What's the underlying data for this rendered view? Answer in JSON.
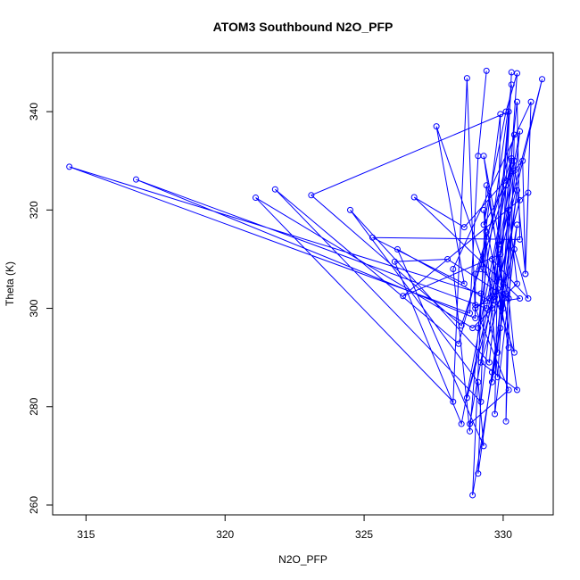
{
  "chart_data": {
    "type": "line",
    "title": "ATOM3 Southbound N2O_PFP",
    "xlabel": "N2O_PFP",
    "ylabel": "Theta (K)",
    "xlim": [
      313.8,
      331.8
    ],
    "ylim": [
      258,
      352
    ],
    "x_ticks": [
      315,
      320,
      325,
      330
    ],
    "y_ticks": [
      260,
      280,
      300,
      320,
      340
    ],
    "markers": "open-circle",
    "grid": false,
    "color": "#0000ff",
    "series": [
      {
        "points": [
          [
            329.4,
            348.3
          ],
          [
            329.1,
            331.0
          ],
          [
            328.8,
            299.0
          ],
          [
            314.4,
            328.8
          ],
          [
            329.2,
            303.0
          ],
          [
            329.8,
            291.0
          ],
          [
            330.3,
            348.0
          ],
          [
            330.1,
            325.0
          ],
          [
            329.4,
            300.0
          ],
          [
            316.8,
            326.2
          ],
          [
            329.0,
            298.0
          ],
          [
            328.7,
            346.8
          ],
          [
            328.2,
            281.0
          ],
          [
            321.1,
            322.5
          ],
          [
            328.9,
            296.0
          ],
          [
            330.5,
            305.0
          ],
          [
            330.2,
            320.0
          ],
          [
            330.1,
            277.0
          ],
          [
            330.4,
            335.3
          ],
          [
            328.4,
            292.8
          ],
          [
            321.8,
            324.2
          ],
          [
            329.2,
            281.0
          ],
          [
            329.6,
            300.0
          ],
          [
            330.2,
            340.0
          ],
          [
            323.1,
            323.0
          ],
          [
            328.5,
            296.5
          ],
          [
            330.4,
            330.0
          ],
          [
            330.8,
            307.0
          ],
          [
            330.9,
            323.5
          ],
          [
            326.4,
            302.5
          ],
          [
            329.9,
            311.0
          ],
          [
            330.0,
            300.0
          ],
          [
            326.2,
            312.0
          ],
          [
            329.3,
            272.0
          ],
          [
            329.1,
            285.0
          ],
          [
            324.5,
            320.0
          ],
          [
            329.5,
            289.0
          ],
          [
            330.5,
            342.0
          ],
          [
            330.6,
            314.0
          ],
          [
            325.3,
            314.4
          ],
          [
            328.6,
            305.0
          ],
          [
            327.6,
            337.0
          ],
          [
            330.4,
            291.0
          ],
          [
            330.2,
            302.0
          ],
          [
            328.0,
            310.0
          ],
          [
            326.1,
            309.5
          ],
          [
            328.5,
            276.5
          ],
          [
            330.3,
            330.5
          ],
          [
            329.0,
            307.0
          ],
          [
            329.0,
            300.7
          ],
          [
            330.6,
            302.0
          ],
          [
            326.8,
            322.6
          ],
          [
            328.6,
            316.5
          ],
          [
            330.7,
            330.0
          ],
          [
            330.8,
            307.0
          ],
          [
            331.0,
            342.0
          ],
          [
            328.2,
            308.0
          ],
          [
            328.8,
            275.0
          ],
          [
            329.4,
            315.5
          ],
          [
            329.1,
            266.4
          ],
          [
            329.6,
            287.0
          ],
          [
            330.5,
            324.0
          ],
          [
            329.9,
            296.0
          ],
          [
            330.5,
            347.8
          ],
          [
            330.1,
            340.0
          ],
          [
            329.3,
            317.0
          ],
          [
            330.4,
            328.0
          ],
          [
            328.8,
            276.5
          ],
          [
            330.2,
            283.4
          ],
          [
            329.0,
            300.0
          ],
          [
            329.5,
            302.0
          ],
          [
            330.6,
            336.0
          ],
          [
            329.6,
            285.0
          ],
          [
            330.1,
            303.0
          ],
          [
            329.2,
            308.0
          ],
          [
            329.9,
            339.5
          ],
          [
            329.7,
            278.5
          ],
          [
            330.5,
            317.0
          ],
          [
            328.9,
            262.0
          ],
          [
            329.4,
            325.0
          ],
          [
            330.0,
            305.0
          ],
          [
            329.1,
            296.0
          ],
          [
            330.3,
            345.5
          ],
          [
            329.7,
            302.3
          ],
          [
            330.6,
            322.0
          ],
          [
            328.7,
            281.8
          ],
          [
            331.4,
            346.6
          ],
          [
            329.9,
            313.0
          ],
          [
            329.3,
            331.0
          ],
          [
            330.5,
            283.4
          ],
          [
            329.2,
            289.0
          ],
          [
            330.4,
            312.0
          ],
          [
            330.9,
            302.0
          ],
          [
            329.6,
            310.0
          ],
          [
            330.2,
            292.0
          ],
          [
            329.3,
            320.0
          ],
          [
            329.8,
            286.0
          ],
          [
            330.3,
            330.0
          ]
        ]
      }
    ]
  }
}
